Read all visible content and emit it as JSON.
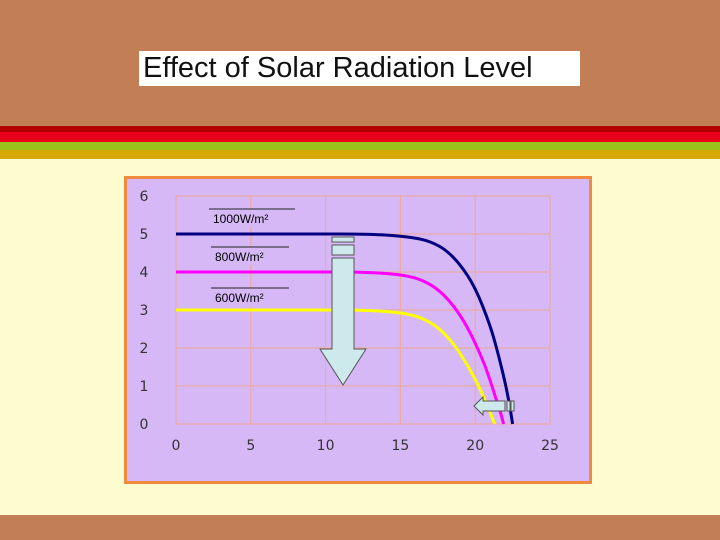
{
  "title": "Effect of Solar Radiation Level",
  "colors": {
    "header": "#c27e55",
    "stripes": [
      "#b30000",
      "#e8001a",
      "#99c21a",
      "#d6a800"
    ],
    "body": "#fdfbd0",
    "chart_bg": "#d6b8f6",
    "chart_border": "#f08a3c",
    "grid": "#f0a890",
    "arrow_fill": "#cde9ec",
    "arrow_stroke": "#555555"
  },
  "icons": {
    "big_arrow": "down-arrow-icon",
    "small_arrow": "left-arrow-icon"
  },
  "chart_data": {
    "type": "line",
    "title": "",
    "xlabel": "",
    "ylabel": "",
    "xlim": [
      0,
      25
    ],
    "ylim": [
      0,
      6
    ],
    "x_ticks": [
      "0",
      "5",
      "10",
      "15",
      "20",
      "25"
    ],
    "y_ticks": [
      "0",
      "1",
      "2",
      "3",
      "4",
      "5",
      "6"
    ],
    "grid": true,
    "series": [
      {
        "name": "1000W/m²",
        "color": "#000080",
        "x": [
          0,
          5,
          10,
          12,
          14,
          16,
          17,
          18,
          19,
          20,
          21,
          21.5,
          22,
          22.3,
          22.5
        ],
        "y": [
          5.0,
          5.0,
          5.0,
          5.0,
          4.98,
          4.9,
          4.8,
          4.6,
          4.2,
          3.6,
          2.6,
          1.9,
          1.1,
          0.5,
          0.0
        ]
      },
      {
        "name": "800W/m²",
        "color": "#ff00ff",
        "x": [
          0,
          5,
          10,
          12,
          14,
          15.5,
          16.5,
          17.5,
          18.5,
          19.5,
          20.5,
          21,
          21.4,
          21.7,
          21.9
        ],
        "y": [
          4.0,
          4.0,
          4.0,
          4.0,
          3.97,
          3.9,
          3.78,
          3.55,
          3.15,
          2.55,
          1.7,
          1.15,
          0.65,
          0.3,
          0.0
        ]
      },
      {
        "name": "600W/m²",
        "color": "#ffff00",
        "x": [
          0,
          5,
          10,
          12,
          14,
          15.5,
          16.5,
          17.5,
          18.5,
          19.5,
          20.3,
          20.8,
          21.1,
          21.3
        ],
        "y": [
          3.0,
          3.0,
          3.0,
          3.0,
          2.97,
          2.9,
          2.78,
          2.55,
          2.15,
          1.55,
          0.95,
          0.5,
          0.2,
          0.0
        ]
      }
    ]
  }
}
